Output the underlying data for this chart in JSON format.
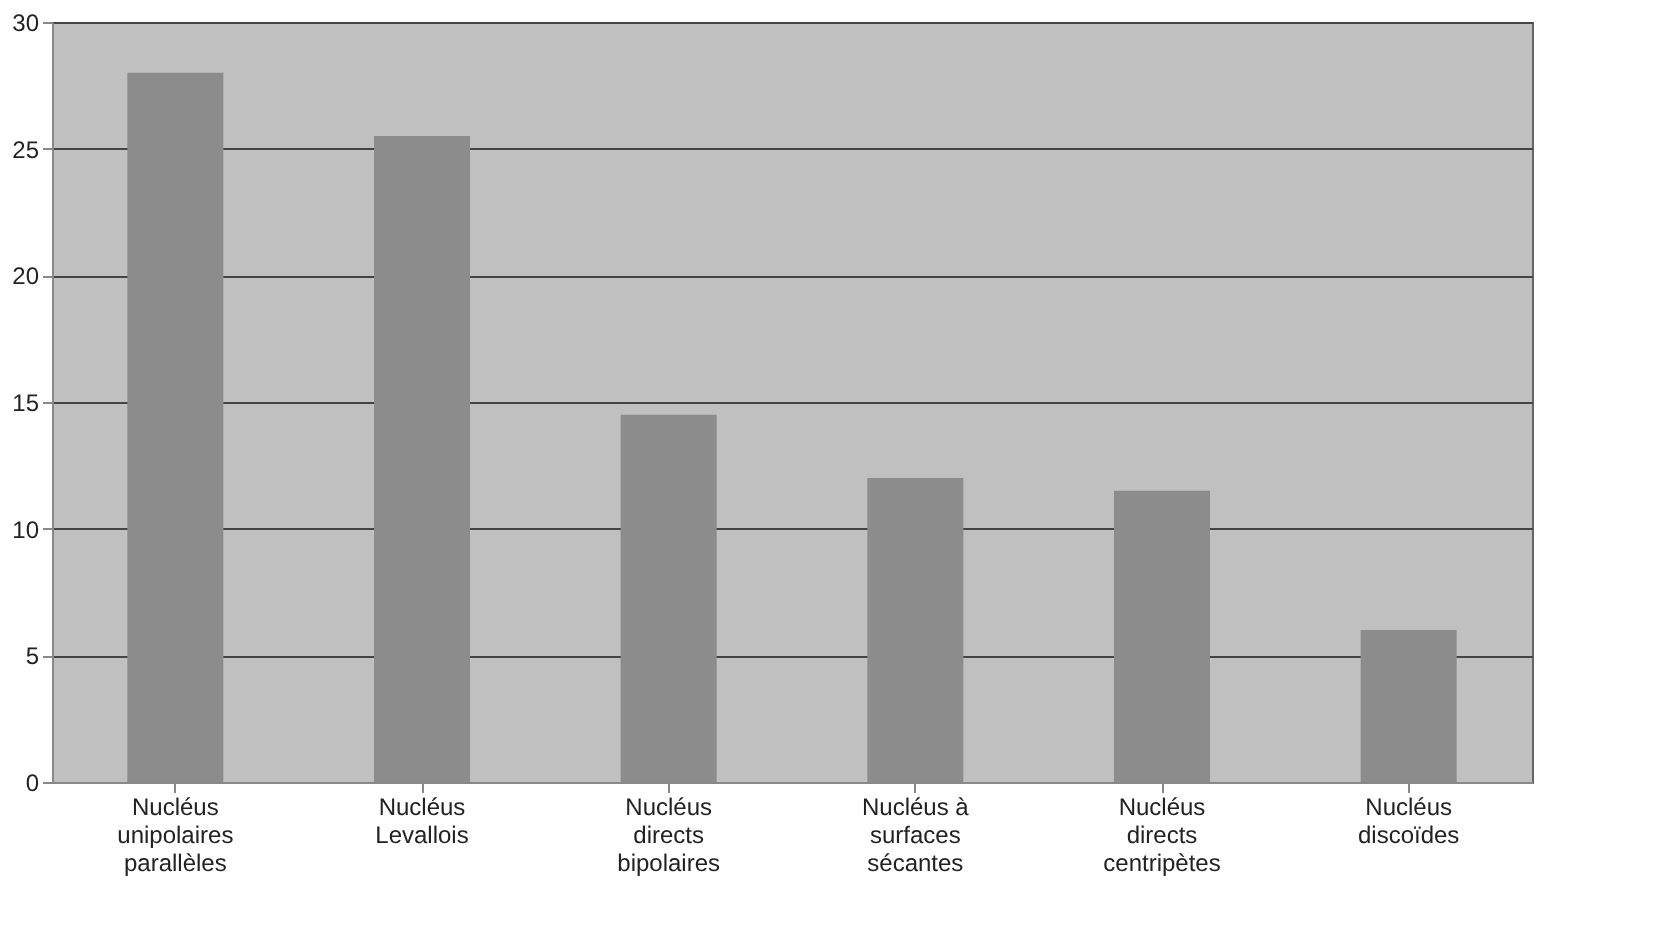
{
  "chart_data": {
    "type": "bar",
    "categories": [
      "Nucléus unipolaires parallèles",
      "Nucléus Levallois",
      "Nucléus directs bipolaires",
      "Nucléus à surfaces sécantes",
      "Nucléus directs centripètes",
      "Nucléus discoïdes"
    ],
    "values": [
      28,
      25.5,
      14.5,
      12,
      11.5,
      6
    ],
    "color": "#8c8c8c",
    "ylim": [
      0,
      30
    ],
    "yticks": [
      0,
      5,
      10,
      15,
      20,
      25,
      30
    ],
    "grid": "y"
  }
}
